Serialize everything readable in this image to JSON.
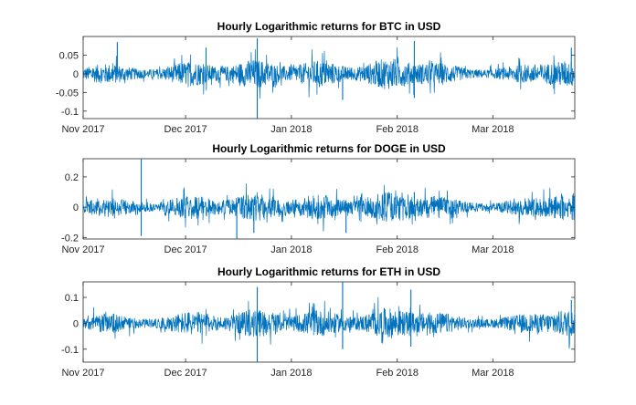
{
  "chart_data": [
    {
      "type": "line",
      "title": "Hourly Logarithmic returns for BTC in USD",
      "xlabel": "",
      "ylabel": "",
      "x_range": [
        "2017-11-01",
        "2018-03-25"
      ],
      "x_ticks": [
        "Nov 2017",
        "Dec 2017",
        "Jan 2018",
        "Feb 2018",
        "Mar 2018"
      ],
      "ylim": [
        -0.12,
        0.1
      ],
      "y_ticks": [
        0.05,
        0,
        -0.05,
        -0.1
      ],
      "y_tick_labels": [
        "0.05",
        "0",
        "-0.05",
        "-0.1"
      ],
      "grid": false,
      "series": [
        {
          "color": "#0072BD",
          "spikes": [
            {
              "x": "2017-11-11",
              "y": 0.085
            },
            {
              "x": "2017-12-07",
              "y": 0.07
            },
            {
              "x": "2017-12-22",
              "y": 0.095
            },
            {
              "x": "2017-12-22",
              "y": -0.12
            },
            {
              "x": "2018-01-16",
              "y": -0.07
            },
            {
              "x": "2018-02-06",
              "y": 0.088
            },
            {
              "x": "2018-02-06",
              "y": -0.065
            },
            {
              "x": "2018-03-24",
              "y": 0.07
            }
          ]
        }
      ]
    },
    {
      "type": "line",
      "title": "Hourly Logarithmic returns for DOGE in USD",
      "xlabel": "",
      "ylabel": "",
      "x_range": [
        "2017-11-01",
        "2018-03-25"
      ],
      "x_ticks": [
        "Nov 2017",
        "Dec 2017",
        "Jan 2018",
        "Feb 2018",
        "Mar 2018"
      ],
      "ylim": [
        -0.21,
        0.32
      ],
      "y_ticks": [
        0.2,
        0,
        -0.2
      ],
      "y_tick_labels": [
        "0.2",
        "0",
        "-0.2"
      ],
      "grid": false,
      "series": [
        {
          "color": "#0072BD",
          "spikes": [
            {
              "x": "2017-11-18",
              "y": 0.32
            },
            {
              "x": "2017-11-18",
              "y": -0.19
            },
            {
              "x": "2017-12-16",
              "y": -0.21
            },
            {
              "x": "2017-12-21",
              "y": -0.17
            },
            {
              "x": "2018-01-17",
              "y": -0.17
            },
            {
              "x": "2018-02-06",
              "y": 0.1
            }
          ]
        }
      ]
    },
    {
      "type": "line",
      "title": "Hourly Logarithmic returns for ETH in USD",
      "xlabel": "",
      "ylabel": "",
      "x_range": [
        "2017-11-01",
        "2018-03-25"
      ],
      "x_ticks": [
        "Nov 2017",
        "Dec 2017",
        "Jan 2018",
        "Feb 2018",
        "Mar 2018"
      ],
      "ylim": [
        -0.15,
        0.16
      ],
      "y_ticks": [
        0.1,
        0,
        -0.1
      ],
      "y_tick_labels": [
        "0.1",
        "0",
        "-0.1"
      ],
      "grid": false,
      "series": [
        {
          "color": "#0072BD",
          "spikes": [
            {
              "x": "2017-12-22",
              "y": 0.14
            },
            {
              "x": "2017-12-22",
              "y": -0.15
            },
            {
              "x": "2018-01-16",
              "y": 0.16
            },
            {
              "x": "2018-01-16",
              "y": -0.1
            },
            {
              "x": "2018-02-05",
              "y": 0.13
            },
            {
              "x": "2018-02-05",
              "y": -0.09
            },
            {
              "x": "2018-03-24",
              "y": 0.09
            }
          ]
        }
      ]
    }
  ]
}
